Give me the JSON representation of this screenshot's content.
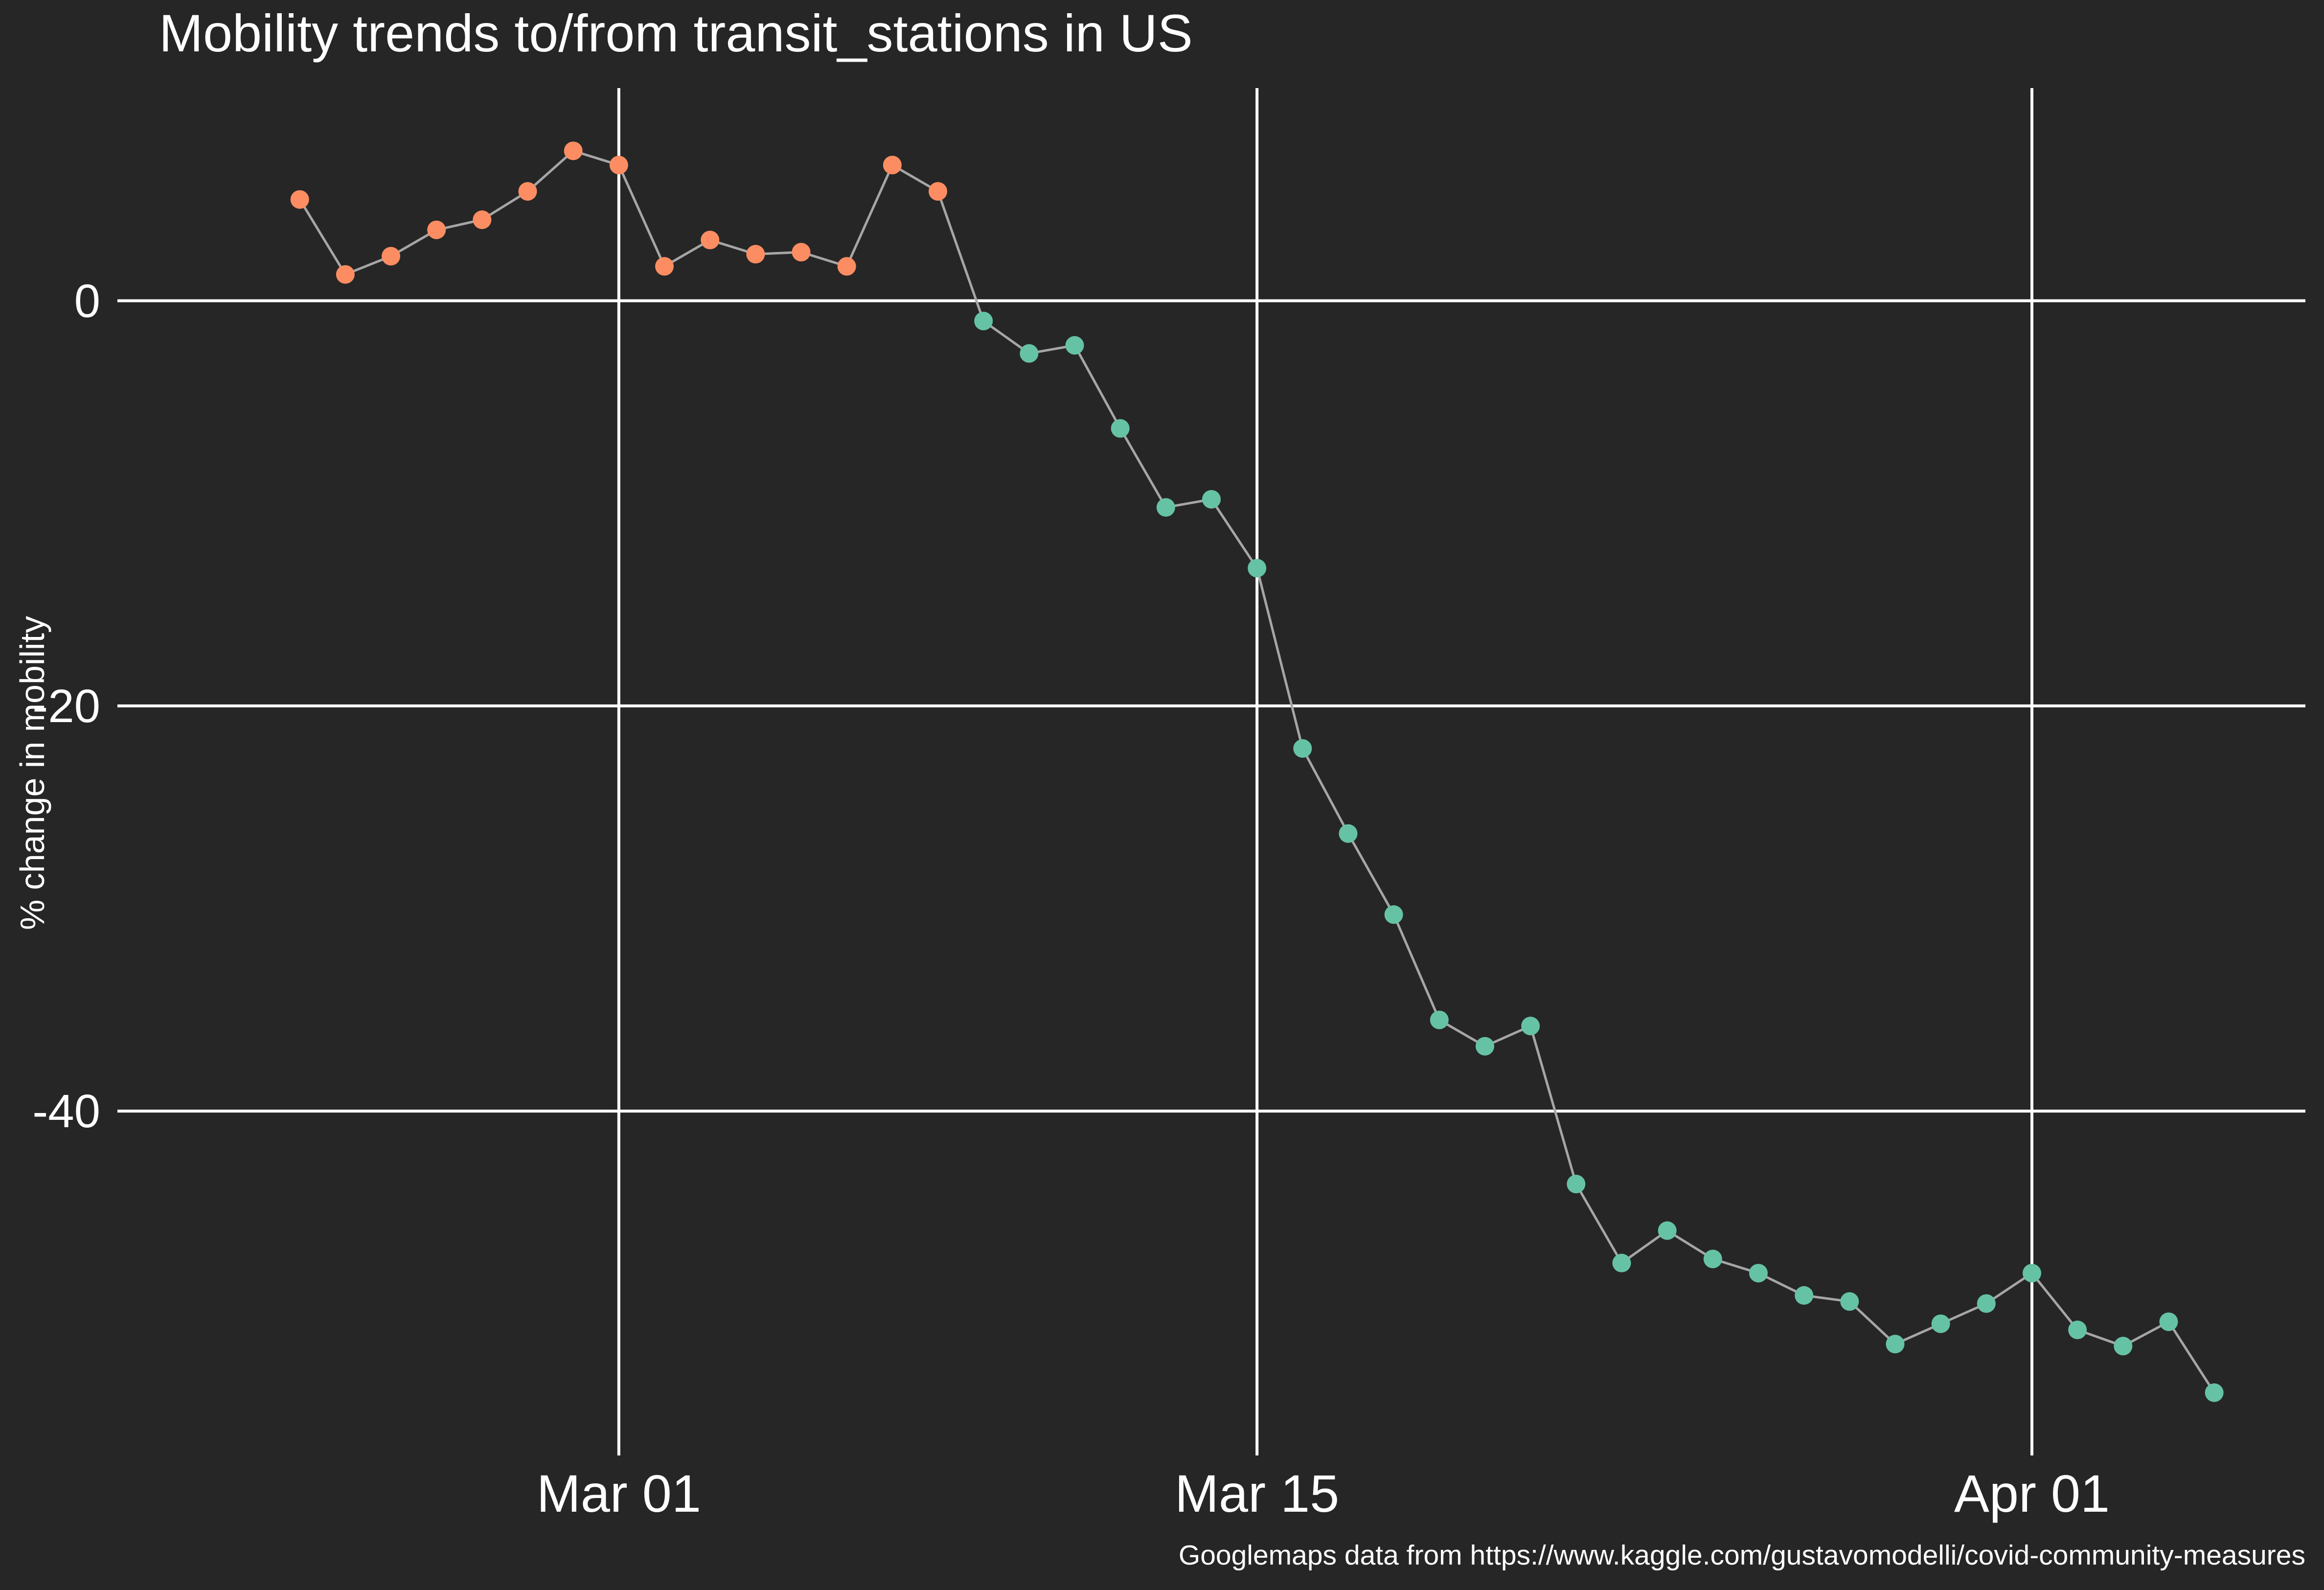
{
  "chart_data": {
    "type": "line",
    "title": "Mobility trends to/from transit_stations in US",
    "xlabel": "",
    "ylabel": "% change in mobility",
    "caption": "Googlemaps data from https://www.kaggle.com/gustavomodelli/covid-community-measures",
    "x_ticks": [
      {
        "label": "Mar 01",
        "date": "2020-03-01"
      },
      {
        "label": "Mar 15",
        "date": "2020-03-15"
      },
      {
        "label": "Apr 01",
        "date": "2020-04-01"
      }
    ],
    "y_ticks": [
      0,
      -20,
      -40
    ],
    "xlim": [
      "2020-02-19",
      "2020-04-07"
    ],
    "ylim": [
      -57,
      10.5
    ],
    "grid": true,
    "colors": {
      "background": "#262626",
      "grid": "#ffffff",
      "line": "#a6a6a6",
      "positive": "#fc8d62",
      "negative": "#66c2a5"
    },
    "series": [
      {
        "x": [
          "2020-02-23",
          "2020-02-24",
          "2020-02-25",
          "2020-02-26",
          "2020-02-27",
          "2020-02-28",
          "2020-02-29",
          "2020-03-01",
          "2020-03-02",
          "2020-03-03",
          "2020-03-04",
          "2020-03-05",
          "2020-03-06",
          "2020-03-07",
          "2020-03-08",
          "2020-03-09",
          "2020-03-10",
          "2020-03-11",
          "2020-03-12",
          "2020-03-13",
          "2020-03-14",
          "2020-03-15",
          "2020-03-16",
          "2020-03-17",
          "2020-03-18",
          "2020-03-19",
          "2020-03-20",
          "2020-03-21",
          "2020-03-22",
          "2020-03-23",
          "2020-03-24",
          "2020-03-25",
          "2020-03-26",
          "2020-03-27",
          "2020-03-28",
          "2020-03-29",
          "2020-03-30",
          "2020-03-31",
          "2020-04-01",
          "2020-04-02",
          "2020-04-03",
          "2020-04-04",
          "2020-04-05"
        ],
        "values": [
          5,
          1.3,
          2.2,
          3.5,
          4,
          5.4,
          7.4,
          6.7,
          1.7,
          3,
          2.3,
          2.4,
          1.7,
          6.7,
          5.4,
          -1,
          -2.6,
          -2.2,
          -6.3,
          -10.2,
          -9.8,
          -13.2,
          -22.1,
          -26.3,
          -30.3,
          -35.5,
          -36.8,
          -35.8,
          -43.6,
          -47.5,
          -45.9,
          -47.3,
          -48,
          -49.1,
          -49.4,
          -51.5,
          -50.5,
          -49.5,
          -48,
          -50.8,
          -51.6,
          -50.4,
          -53.9
        ]
      }
    ]
  }
}
